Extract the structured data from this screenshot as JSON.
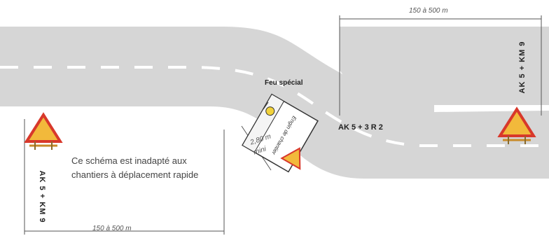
{
  "distances": {
    "top": "150 à 500 m",
    "bottom": "150 à 500 m"
  },
  "lateral_gap": {
    "value": "2,80 m",
    "qualifier": "mini"
  },
  "signs": {
    "left_panel": "AK 5 + KM 9",
    "right_panel": "AK 5 + KM 9",
    "vehicle_sign": "AK 5 + 3 R 2"
  },
  "vehicle": {
    "light_label": "Feu spécial",
    "body_text": "Engin de chantier"
  },
  "note": "Ce schéma est inadapté aux chantiers à déplacement rapide",
  "colors": {
    "road": "#d6d6d6",
    "marking": "#ffffff",
    "sign_fill": "#f2b93b",
    "sign_border": "#d8382b"
  }
}
